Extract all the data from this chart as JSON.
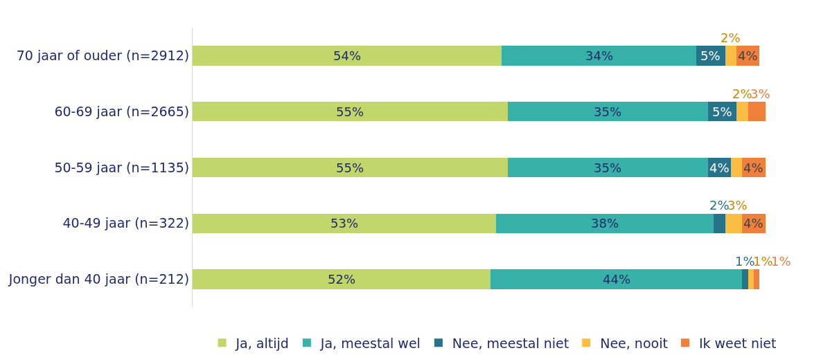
{
  "chart_data": {
    "type": "bar",
    "orientation": "horizontal",
    "stacked": true,
    "legend": "bottom",
    "tick_labels": "y",
    "categories": [
      "70 jaar of ouder (n=2912)",
      "60-69 jaar (n=2665)",
      "50-59 jaar (n=1135)",
      "40-49 jaar (n=322)",
      "Jonger dan 40 jaar (n=212)"
    ],
    "series": [
      {
        "name": "Ja, altijd",
        "color": "#c3d66b",
        "values": [
          54,
          55,
          55,
          53,
          52
        ],
        "value_labels": [
          "54%",
          "55%",
          "55%",
          "53%",
          "52%"
        ]
      },
      {
        "name": "Ja, meestal wel",
        "color": "#38b2a8",
        "values": [
          34,
          35,
          35,
          38,
          44
        ],
        "value_labels": [
          "34%",
          "35%",
          "35%",
          "38%",
          "44%"
        ]
      },
      {
        "name": "Nee, meestal niet",
        "color": "#27738a",
        "values": [
          5,
          5,
          4,
          2,
          1
        ],
        "value_labels": [
          "5%",
          "5%",
          "4%",
          "2%",
          "1%"
        ]
      },
      {
        "name": "Nee, nooit",
        "color": "#fbbd44",
        "values": [
          2,
          2,
          2,
          3,
          1
        ],
        "value_labels": [
          "2%",
          "2%",
          null,
          "3%",
          "1%"
        ]
      },
      {
        "name": "Ik weet niet",
        "color": "#f07f3c",
        "values": [
          4,
          3,
          4,
          4,
          1
        ],
        "value_labels": [
          "4%",
          "3%",
          "4%",
          "4%",
          "1%"
        ]
      }
    ]
  }
}
